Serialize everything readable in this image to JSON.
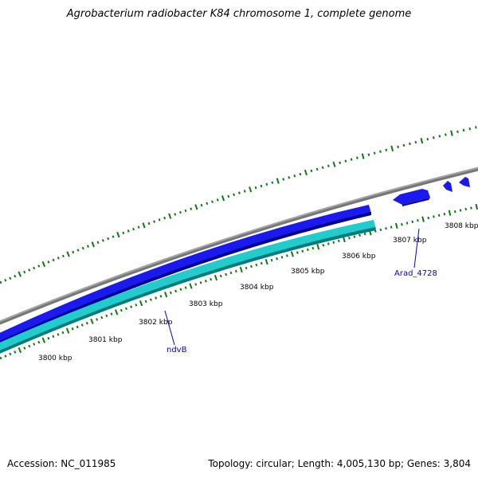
{
  "title": "Agrobacterium radiobacter K84 chromosome 1, complete genome",
  "footer": {
    "accession": "Accession: NC_011985",
    "stats": "Topology: circular; Length: 4,005,130 bp; Genes: 3,804"
  },
  "ruler": {
    "ticks": [
      "3800 kbp",
      "3801 kbp",
      "3802 kbp",
      "3803 kbp",
      "3804 kbp",
      "3805 kbp",
      "3806 kbp",
      "3807 kbp",
      "3808 kbp"
    ]
  },
  "genes": [
    {
      "label": "ndvB",
      "strand": "forward"
    },
    {
      "label": "Arad_4728",
      "strand": "reverse"
    }
  ],
  "colors": {
    "backbone": "#888888",
    "cds": "#1a1aee",
    "cds_dark": "#0000a0",
    "rna": "#22cccc",
    "rna_dark": "#008080",
    "ticks": "#117711",
    "gene_label": "#0000cc"
  }
}
